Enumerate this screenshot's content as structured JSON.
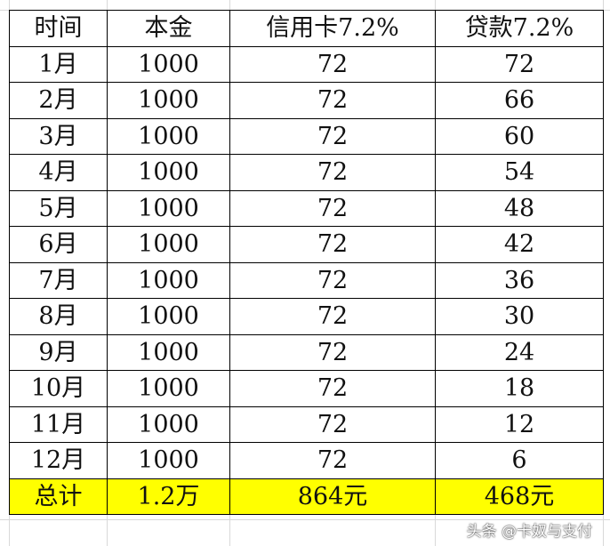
{
  "table": {
    "headers": [
      "时间",
      "本金",
      "信用卡7.2%",
      "贷款7.2%"
    ],
    "rows": [
      [
        "1月",
        "1000",
        "72",
        "72"
      ],
      [
        "2月",
        "1000",
        "72",
        "66"
      ],
      [
        "3月",
        "1000",
        "72",
        "60"
      ],
      [
        "4月",
        "1000",
        "72",
        "54"
      ],
      [
        "5月",
        "1000",
        "72",
        "48"
      ],
      [
        "6月",
        "1000",
        "72",
        "42"
      ],
      [
        "7月",
        "1000",
        "72",
        "36"
      ],
      [
        "8月",
        "1000",
        "72",
        "30"
      ],
      [
        "9月",
        "1000",
        "72",
        "24"
      ],
      [
        "10月",
        "1000",
        "72",
        "18"
      ],
      [
        "11月",
        "1000",
        "72",
        "12"
      ],
      [
        "12月",
        "1000",
        "72",
        "6"
      ]
    ],
    "total": [
      "总计",
      "1.2万",
      "864元",
      "468元"
    ],
    "total_highlight_color": "#ffff00"
  },
  "watermark": "头条 @卡奴与支付"
}
